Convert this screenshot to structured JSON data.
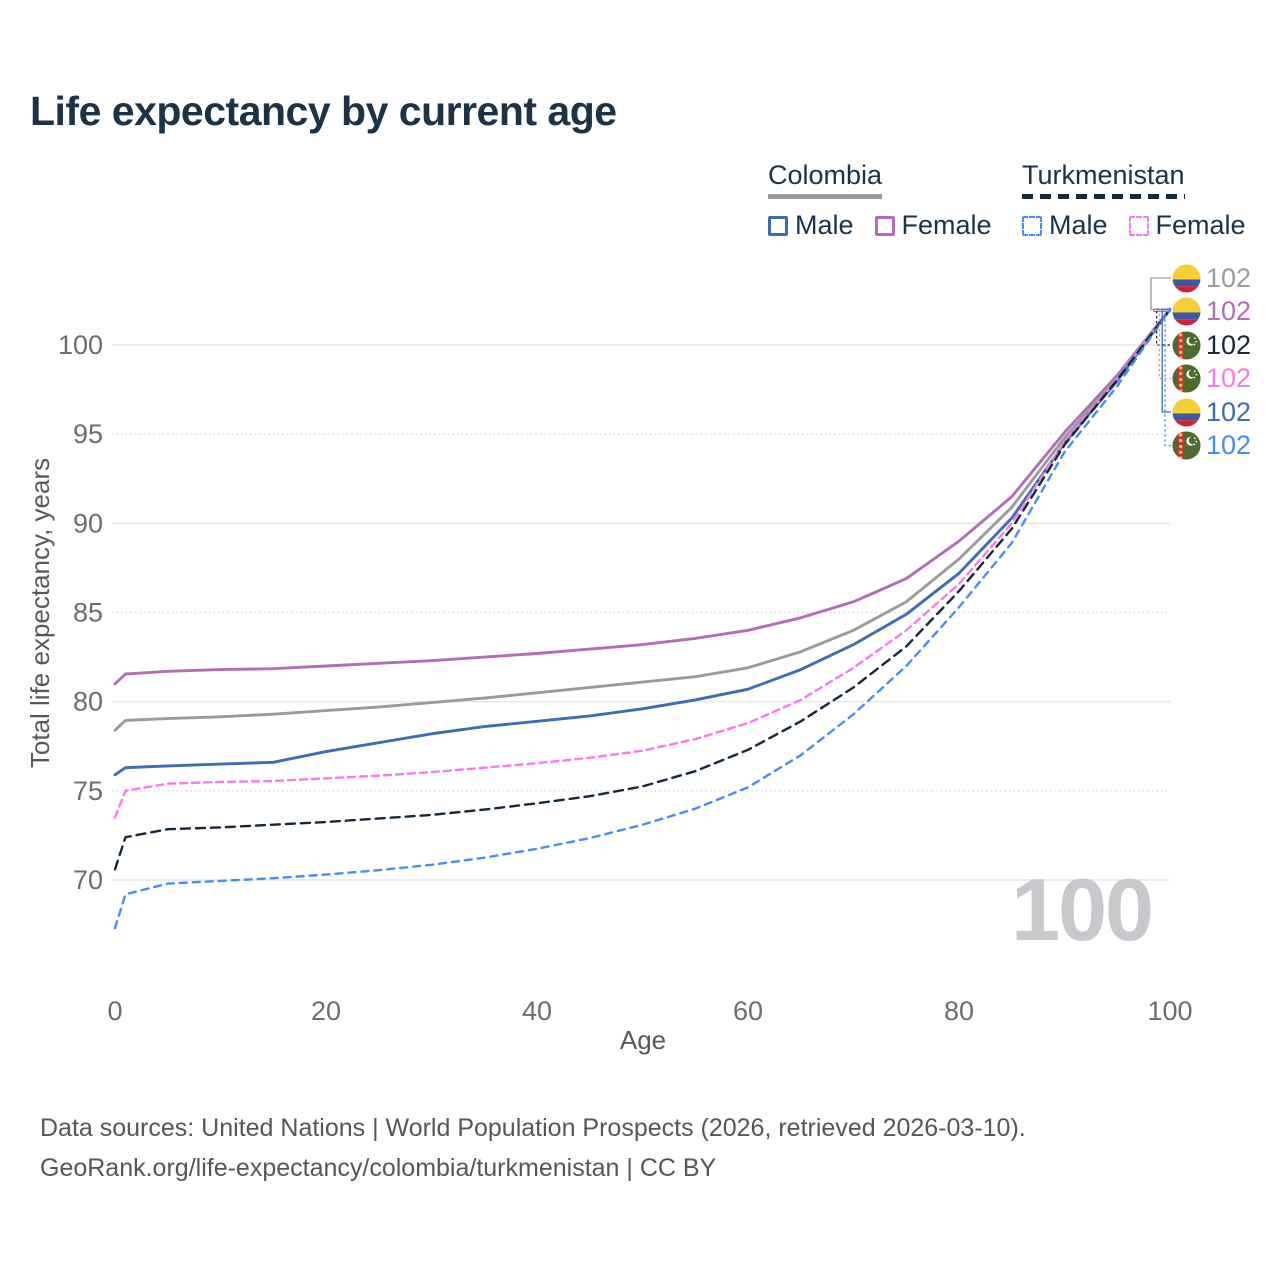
{
  "title": "Life expectancy by current age",
  "legend": {
    "groups": [
      {
        "id": "colombia",
        "label": "Colombia",
        "line_style": "solid",
        "line_color": "#9a9a9a",
        "items": [
          {
            "label": "Male",
            "color": "#3d6cb4",
            "dashed": false
          },
          {
            "label": "Female",
            "color": "#b06fb4",
            "dashed": false
          }
        ]
      },
      {
        "id": "turkmenistan",
        "label": "Turkmenistan",
        "line_style": "dashed",
        "line_color": "#16283c",
        "items": [
          {
            "label": "Male",
            "color": "#4b8bf5",
            "dashed": true
          },
          {
            "label": "Female",
            "color": "#f87ce8",
            "dashed": true
          }
        ]
      }
    ]
  },
  "chart_data": {
    "type": "line",
    "title": "Life expectancy by current age",
    "xlabel": "Age",
    "ylabel": "Total life expectancy, years",
    "x_ticks": [
      0,
      20,
      40,
      60,
      80,
      100
    ],
    "y_ticks": [
      70,
      75,
      80,
      85,
      90,
      95,
      100
    ],
    "xlim": [
      0,
      100
    ],
    "ylim": [
      67,
      102
    ],
    "grid": "horizontal, solid at decades, dotted at half-decades",
    "legend_position": "top-right",
    "age_counter": "100",
    "x": [
      0,
      1,
      5,
      10,
      15,
      20,
      25,
      30,
      35,
      40,
      45,
      50,
      55,
      60,
      65,
      70,
      75,
      80,
      85,
      90,
      95,
      100
    ],
    "series": [
      {
        "id": "colombia-female",
        "country": "Colombia",
        "sex": "Female",
        "color": "#b06fb4",
        "dashed": false,
        "values": [
          81.0,
          81.55,
          81.7,
          81.8,
          81.85,
          82.0,
          82.15,
          82.3,
          82.5,
          82.7,
          82.95,
          83.2,
          83.55,
          84.0,
          84.7,
          85.6,
          86.9,
          89.0,
          91.5,
          95.1,
          98.3,
          102
        ]
      },
      {
        "id": "colombia-both",
        "country": "Colombia",
        "sex": "Both",
        "color": "#9a9a9a",
        "dashed": false,
        "values": [
          78.4,
          78.95,
          79.05,
          79.15,
          79.3,
          79.5,
          79.7,
          79.95,
          80.2,
          80.5,
          80.8,
          81.1,
          81.4,
          81.9,
          82.8,
          84.0,
          85.6,
          88.0,
          90.9,
          94.8,
          98.15,
          102
        ]
      },
      {
        "id": "colombia-male",
        "country": "Colombia",
        "sex": "Male",
        "color": "#3d6cb4",
        "dashed": false,
        "values": [
          75.9,
          76.3,
          76.4,
          76.5,
          76.6,
          77.2,
          77.7,
          78.2,
          78.6,
          78.9,
          79.2,
          79.6,
          80.1,
          80.7,
          81.8,
          83.2,
          84.9,
          87.2,
          90.3,
          94.5,
          98.0,
          102
        ]
      },
      {
        "id": "turkmenistan-female",
        "country": "Turkmenistan",
        "sex": "Female",
        "color": "#f87ce8",
        "dashed": true,
        "dash": "7 5",
        "values": [
          73.5,
          75.0,
          75.4,
          75.5,
          75.55,
          75.7,
          75.85,
          76.05,
          76.3,
          76.55,
          76.85,
          77.25,
          77.9,
          78.8,
          80.1,
          81.9,
          84.0,
          86.6,
          90.0,
          94.6,
          98.1,
          102
        ]
      },
      {
        "id": "turkmenistan-both",
        "country": "Turkmenistan",
        "sex": "Both",
        "color": "#16283c",
        "dashed": true,
        "dash": "9 6",
        "values": [
          70.6,
          72.4,
          72.85,
          72.95,
          73.1,
          73.25,
          73.45,
          73.65,
          73.95,
          74.3,
          74.7,
          75.25,
          76.1,
          77.3,
          78.9,
          80.8,
          83.1,
          86.2,
          89.7,
          94.4,
          98.05,
          102
        ]
      },
      {
        "id": "turkmenistan-male",
        "country": "Turkmenistan",
        "sex": "Male",
        "color": "#4b8bf5",
        "dashed": true,
        "dash": "7 6",
        "values": [
          67.3,
          69.2,
          69.8,
          69.95,
          70.1,
          70.3,
          70.55,
          70.85,
          71.25,
          71.75,
          72.35,
          73.1,
          74.0,
          75.2,
          77.0,
          79.3,
          82.0,
          85.3,
          88.9,
          94.0,
          97.7,
          102
        ]
      }
    ],
    "endpoint_labels": [
      {
        "country": "colombia",
        "series": "colombia-both",
        "value": "102",
        "color": "#9a9a9a",
        "dashed": false
      },
      {
        "country": "colombia",
        "series": "colombia-female",
        "value": "102",
        "color": "#b06fb4",
        "dashed": false
      },
      {
        "country": "turkmenistan",
        "series": "turkmenistan-both",
        "value": "102",
        "color": "#16283c",
        "dashed": true
      },
      {
        "country": "turkmenistan",
        "series": "turkmenistan-female",
        "value": "102",
        "color": "#f87ce8",
        "dashed": true
      },
      {
        "country": "colombia",
        "series": "colombia-male",
        "value": "102",
        "color": "#3d6cb4",
        "dashed": false
      },
      {
        "country": "turkmenistan",
        "series": "turkmenistan-male",
        "value": "102",
        "color": "#4b8bf5",
        "dashed": true
      }
    ]
  },
  "footer": {
    "line1": "Data sources: United Nations | World Population Prospects (2026, retrieved 2026-03-10).",
    "line2": "GeoRank.org/life-expectancy/colombia/turkmenistan | CC BY"
  }
}
